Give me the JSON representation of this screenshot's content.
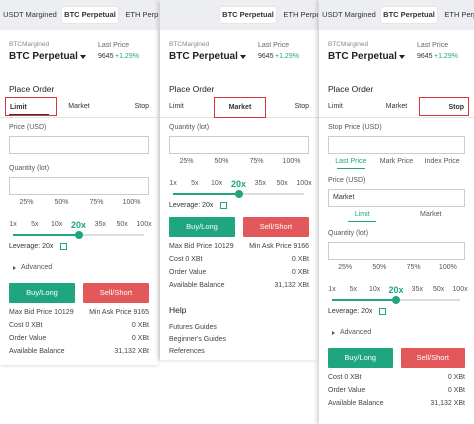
{
  "panels": [
    {
      "top_tabs": [
        "USDT Margined",
        "BTC Perpetual",
        "ETH Perpetual"
      ],
      "margin_label": "BTCMargined",
      "symbol": "BTC Perpetual",
      "last_price_label": "Last Price",
      "last_price": "9645",
      "change": "+1.29%",
      "section_title": "Place Order",
      "order_tabs": [
        "Limit",
        "Market",
        "Stop"
      ],
      "price_label": "Price (USD)",
      "quantity_label": "Quantity (lot)",
      "percentages": [
        "25%",
        "50%",
        "75%",
        "100%"
      ],
      "leverage_options": [
        "1x",
        "5x",
        "10x",
        "20x",
        "35x",
        "50x",
        "100x"
      ],
      "leverage": "Leverage: 20x",
      "advanced": "Advanced",
      "buy": "Buy/Long",
      "sell": "Sell/Short",
      "summary": [
        [
          "Max Bid Price 10129",
          "Min Ask Price 9165"
        ],
        [
          "Cost 0 XBt",
          "0 XBt"
        ],
        [
          "Order Value",
          "0 XBt"
        ],
        [
          "Available Balance",
          "31,132 XBt"
        ]
      ]
    },
    {
      "top_tabs": [
        "BTC Perpetual",
        "ETH Perpetual"
      ],
      "margin_label": "BTCMargined",
      "symbol": "BTC Perpetual",
      "last_price_label": "Last Price",
      "last_price": "9645",
      "change": "+1.29%",
      "section_title": "Place Order",
      "order_tabs": [
        "Limit",
        "Market",
        "Stop"
      ],
      "quantity_label": "Quantity (lot)",
      "percentages": [
        "25%",
        "50%",
        "75%",
        "100%"
      ],
      "leverage_options": [
        "1x",
        "5x",
        "10x",
        "20x",
        "35x",
        "50x",
        "100x"
      ],
      "leverage": "Leverage: 20x",
      "buy": "Buy/Long",
      "sell": "Sell/Short",
      "summary": [
        [
          "Max Bid Price 10129",
          "Min Ask Price 9166"
        ],
        [
          "Cost 0 XBt",
          "0 XBt"
        ],
        [
          "Order Value",
          "0 XBt"
        ],
        [
          "Available Balance",
          "31,132 XBt"
        ]
      ],
      "help": {
        "title": "Help",
        "links": [
          "Futures Guides",
          "Beginner's Guides",
          "References"
        ]
      }
    },
    {
      "top_tabs": [
        "USDT Margined",
        "BTC Perpetual",
        "ETH Perpetual"
      ],
      "margin_label": "BTCMargined",
      "symbol": "BTC Perpetual",
      "last_price_label": "Last Price",
      "last_price": "9645",
      "change": "+1.29%",
      "section_title": "Place Order",
      "order_tabs": [
        "Limit",
        "Market",
        "Stop"
      ],
      "stop_price_label": "Stop Price (USD)",
      "trigger_options": [
        "Last Price",
        "Mark Price",
        "Index Price"
      ],
      "price_label": "Price (USD)",
      "price_value": "Market",
      "price_types": [
        "Limit",
        "Market"
      ],
      "quantity_label": "Quantity (lot)",
      "percentages": [
        "25%",
        "50%",
        "75%",
        "100%"
      ],
      "leverage_options": [
        "1x",
        "5x",
        "10x",
        "20x",
        "35x",
        "50x",
        "100x"
      ],
      "leverage": "Leverage: 20x",
      "advanced": "Advanced",
      "buy": "Buy/Long",
      "sell": "Sell/Short",
      "summary": [
        [
          "Cost 0 XBt",
          "0 XBt"
        ],
        [
          "Order Value",
          "0 XBt"
        ],
        [
          "Available Balance",
          "31,132 XBt"
        ]
      ]
    }
  ]
}
